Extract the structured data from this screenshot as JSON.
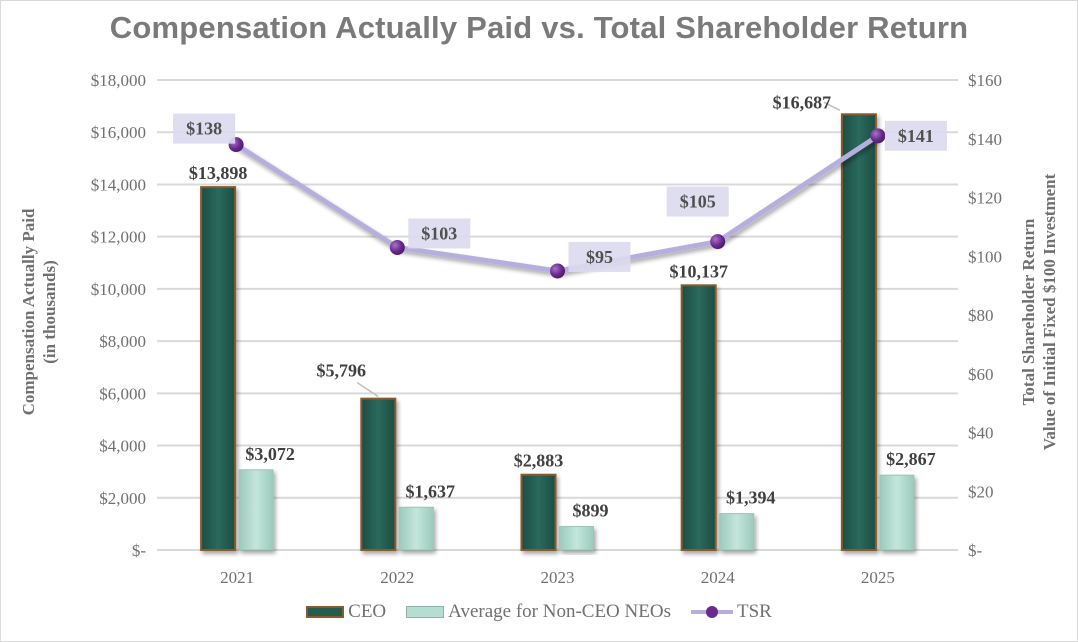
{
  "chart_data": {
    "type": "bar",
    "title": "Compensation Actually Paid vs. Total Shareholder Return",
    "categories": [
      "2021",
      "2022",
      "2023",
      "2024",
      "2025"
    ],
    "series": [
      {
        "name": "CEO",
        "type": "bar",
        "axis": "left",
        "values": [
          13898,
          5796,
          2883,
          10137,
          16687
        ],
        "labels": [
          "$13,898",
          "$5,796",
          "$2,883",
          "$10,137",
          "$16,687"
        ],
        "color": "#245c50"
      },
      {
        "name": "Average for Non-CEO NEOs",
        "type": "bar",
        "axis": "left",
        "values": [
          3072,
          1637,
          899,
          1394,
          2867
        ],
        "labels": [
          "$3,072",
          "$1,637",
          "$899",
          "$1,394",
          "$2,867"
        ],
        "color": "#b5ddd2"
      },
      {
        "name": "TSR",
        "type": "line",
        "axis": "right",
        "values": [
          138,
          103,
          95,
          105,
          141
        ],
        "labels": [
          "$138",
          "$103",
          "$95",
          "$105",
          "$141"
        ],
        "color": "#6a2a90",
        "line_color": "#b6aedc"
      }
    ],
    "ylabel": "Compensation Actually Paid",
    "ylabel_sub": "(in thousands)",
    "ylim": [
      0,
      18000
    ],
    "yticks": [
      0,
      2000,
      4000,
      6000,
      8000,
      10000,
      12000,
      14000,
      16000,
      18000
    ],
    "ytick_labels": [
      "$-",
      "$2,000",
      "$4,000",
      "$6,000",
      "$8,000",
      "$10,000",
      "$12,000",
      "$14,000",
      "$16,000",
      "$18,000"
    ],
    "y2label": "Total Shareholder Return",
    "y2label_sub": "Value of Initial Fixed $100 Investment",
    "y2lim": [
      0,
      160
    ],
    "y2ticks": [
      0,
      20,
      40,
      60,
      80,
      100,
      120,
      140,
      160
    ],
    "y2tick_labels": [
      "$-",
      "$20",
      "$40",
      "$60",
      "$80",
      "$100",
      "$120",
      "$140",
      "$160"
    ],
    "grid": true,
    "legend_position": "bottom"
  }
}
